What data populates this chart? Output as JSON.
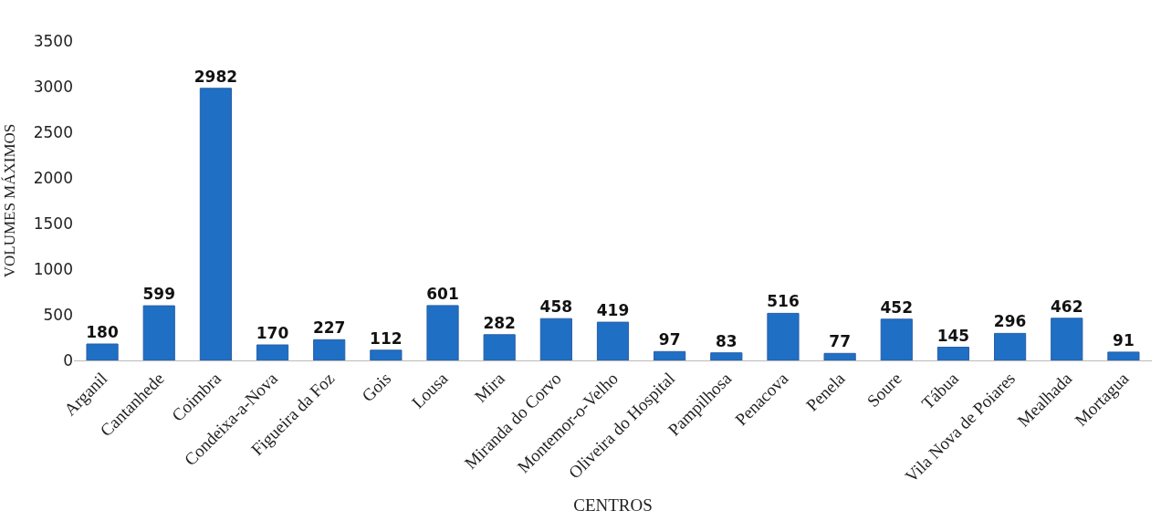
{
  "chart_data": {
    "type": "bar",
    "xlabel": "CENTROS",
    "ylabel": "VOLUMES MÁXIMOS",
    "categories": [
      "Arganil",
      "Cantanhede",
      "Coimbra",
      "Condeixa-a-Nova",
      "Figueira da Foz",
      "Gois",
      "Lousa",
      "Mira",
      "Miranda do Corvo",
      "Montemor-o-Velho",
      "Oliveira do Hospital",
      "Pampilhosa",
      "Penacova",
      "Penela",
      "Soure",
      "Tábua",
      "Vila Nova de Poiares",
      "Mealhada",
      "Mortagua"
    ],
    "values": [
      180,
      599,
      2982,
      170,
      227,
      112,
      601,
      282,
      458,
      419,
      97,
      83,
      516,
      77,
      452,
      145,
      296,
      462,
      91
    ],
    "color": "#1f6fc4",
    "ylim": [
      0,
      3500
    ],
    "yticks": [
      0,
      500,
      1000,
      1500,
      2000,
      2500,
      3000,
      3500
    ],
    "grid": false,
    "data_labels": true
  }
}
